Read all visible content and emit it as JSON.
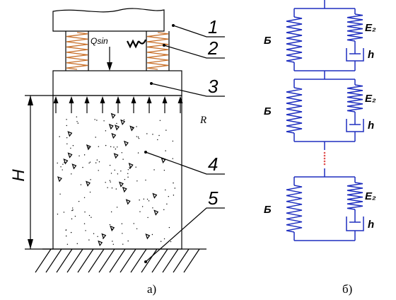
{
  "callouts": [
    "1",
    "2",
    "3",
    "4",
    "5"
  ],
  "load": "Qsin",
  "reaction": "R",
  "height": "H",
  "units": [
    {
      "e1": "Б",
      "e2": "E₂",
      "eta": "h"
    },
    {
      "e1": "Б",
      "e2": "E₂",
      "eta": "h"
    },
    {
      "e1": "Б",
      "e2": "E₂",
      "eta": "h"
    }
  ],
  "captions": [
    "а)",
    "б)"
  ]
}
